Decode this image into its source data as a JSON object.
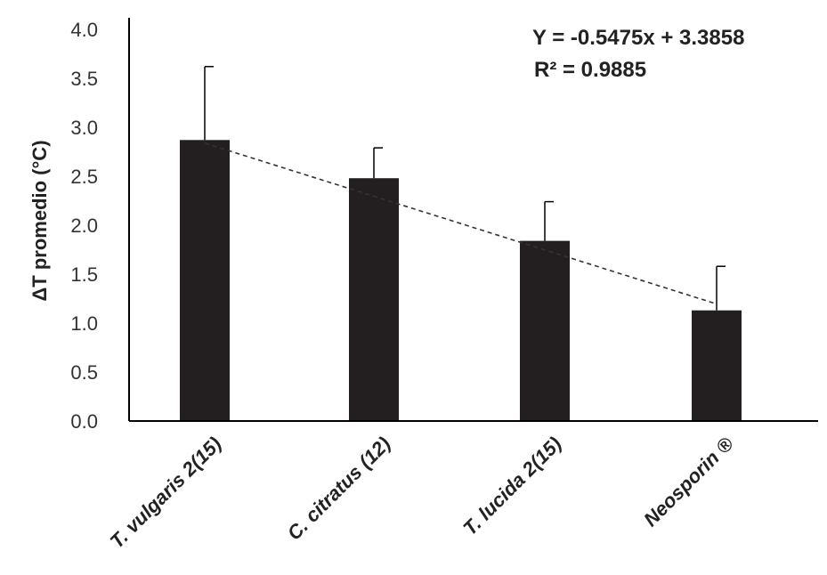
{
  "chart_data": {
    "type": "bar",
    "categories": [
      "T. vulgaris 2(15)",
      "C. citratus (12)",
      "T. lucida 2(15)",
      "Neosporin ®"
    ],
    "values": [
      2.87,
      2.48,
      1.84,
      1.13
    ],
    "error_upper": [
      3.62,
      2.79,
      2.24,
      1.58
    ],
    "trendline": {
      "slope": -0.5475,
      "intercept": 3.3858
    },
    "annotation_eq": "Y = -0.5475x + 3.3858",
    "annotation_r2": "R² = 0.9885",
    "xlabel": "",
    "ylabel": "ΔT promedio (°C)",
    "ylim": [
      0,
      4.0
    ],
    "yticks": [
      "0.0",
      "0.5",
      "1.0",
      "1.5",
      "2.0",
      "2.5",
      "3.0",
      "3.5",
      "4.0"
    ],
    "grid": false,
    "legend": "none",
    "colors": {
      "bar": "#231f20",
      "axis": "#000000",
      "trend": "#333333"
    }
  }
}
